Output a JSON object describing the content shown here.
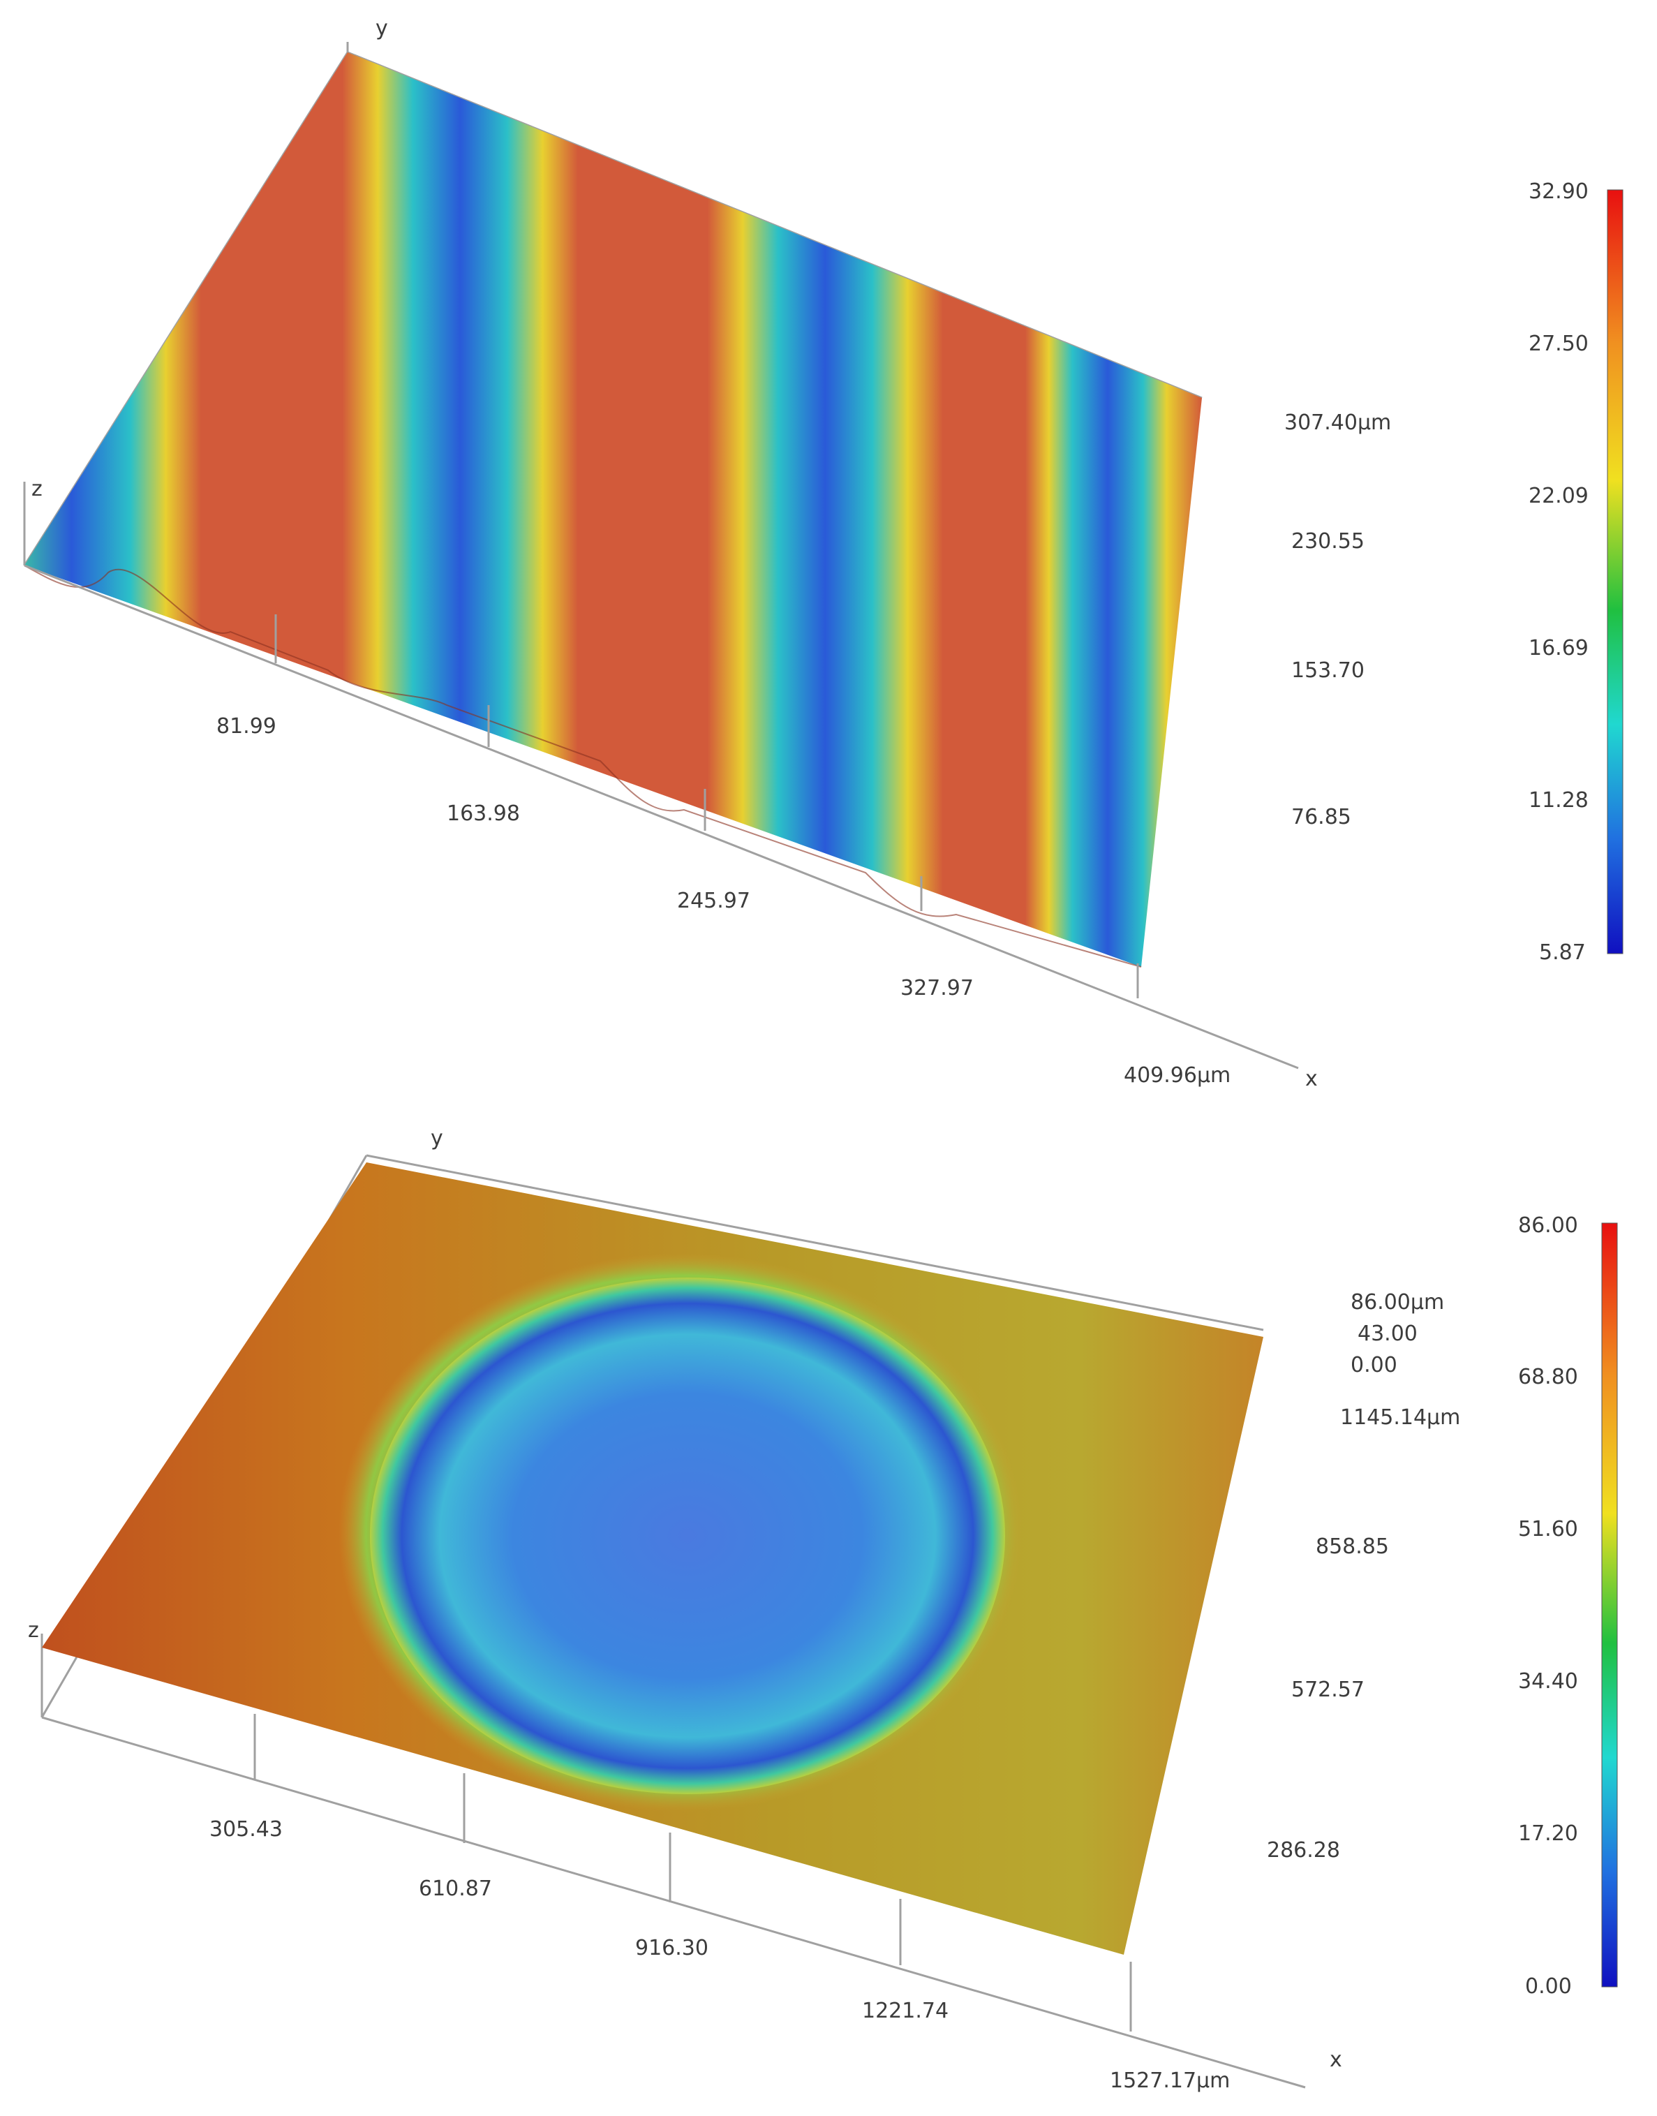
{
  "chart_data": [
    {
      "type": "surface",
      "x_label": "x",
      "y_label": "y",
      "z_label": "z",
      "x_ticks": [
        "81.99",
        "163.98",
        "245.97",
        "327.97",
        "409.96µm"
      ],
      "y_ticks": [
        "76.85",
        "153.70",
        "230.55",
        "307.40µm"
      ],
      "x_range": [
        0,
        409.96
      ],
      "y_range": [
        0,
        307.4
      ],
      "unit": "µm",
      "surface": "periodic grooves running along y, 4 troughs across x",
      "colorbar": {
        "ticks": [
          "32.90",
          "27.50",
          "22.09",
          "16.69",
          "11.28",
          "5.87"
        ],
        "range": [
          5.87,
          32.9
        ]
      }
    },
    {
      "type": "surface",
      "x_label": "x",
      "y_label": "y",
      "z_label": "z",
      "x_ticks": [
        "305.43",
        "610.87",
        "916.30",
        "1221.74",
        "1527.17µm"
      ],
      "y_ticks": [
        "286.28",
        "572.57",
        "858.85",
        "1145.14µm"
      ],
      "z_ticks": [
        "86.00µm",
        "43.00",
        "0.00"
      ],
      "x_range": [
        0,
        1527.17
      ],
      "y_range": [
        0,
        1145.14
      ],
      "z_range": [
        0,
        86.0
      ],
      "unit": "µm",
      "surface": "single circular dimple (crater) in center",
      "colorbar": {
        "ticks": [
          "86.00",
          "68.80",
          "51.60",
          "34.40",
          "17.20",
          "0.00"
        ],
        "range": [
          0,
          86.0
        ]
      }
    }
  ],
  "colors": {
    "high": "#d7402a",
    "mid_high": "#f0a020",
    "yellow": "#e8e020",
    "green": "#36c040",
    "cyan": "#36d2d8",
    "blue": "#2244d8",
    "low": "#1a20b8",
    "axis": "#9a9a9a",
    "text": "#3c3c3c"
  }
}
